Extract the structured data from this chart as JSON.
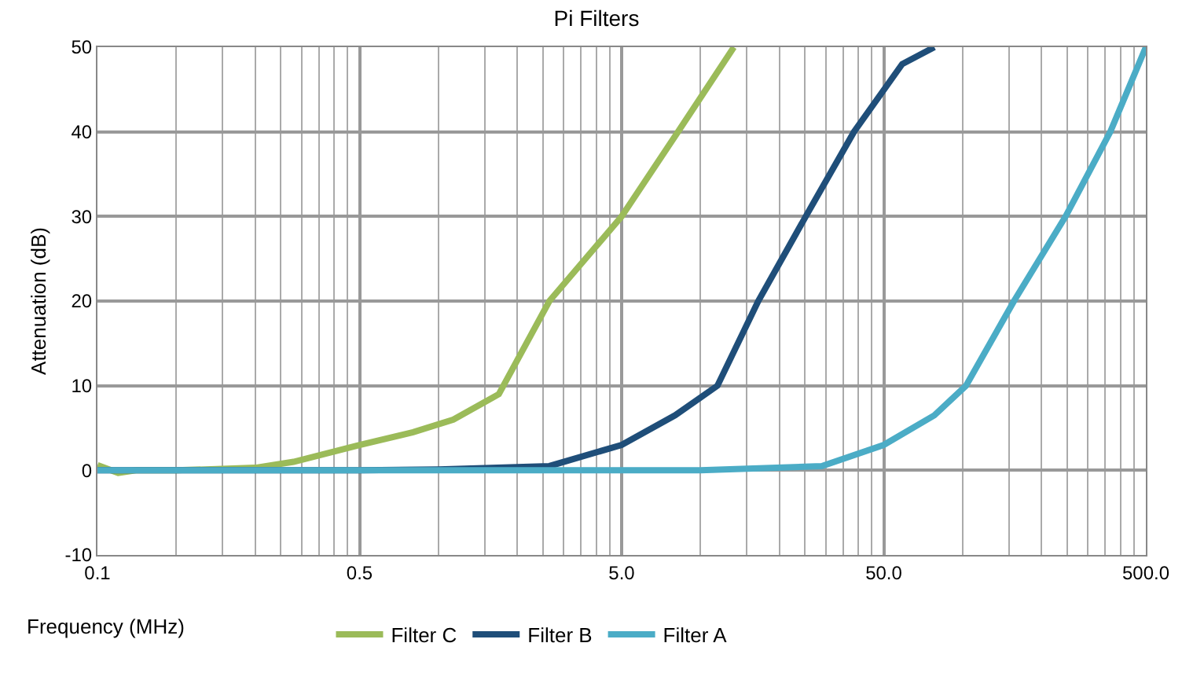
{
  "chart_data": {
    "type": "line",
    "title": "Pi Filters",
    "xlabel": "Frequency (MHz)",
    "ylabel": "Attenuation (dB)",
    "log": "x",
    "xlim": [
      0.05,
      500
    ],
    "xticks": [
      {
        "value": 0.05,
        "label": "0.1"
      },
      {
        "value": 0.5,
        "label": "0.5"
      },
      {
        "value": 5,
        "label": "5.0"
      },
      {
        "value": 50,
        "label": "50.0"
      },
      {
        "value": 500,
        "label": "500.0"
      }
    ],
    "ylim": [
      -10,
      50
    ],
    "yticks": [
      -10,
      0,
      10,
      20,
      30,
      40,
      50
    ],
    "grid": true,
    "legend": "bottom",
    "marker": "none",
    "line_style": "solid",
    "series": [
      {
        "name": "Filter C",
        "color": "#9bbb59",
        "x": [
          0.05,
          0.06,
          0.07,
          0.1,
          0.2,
          0.28,
          0.5,
          0.8,
          1.14,
          1.7,
          2.65,
          5,
          8.2,
          13.4
        ],
        "values": [
          0.6,
          -0.3,
          0,
          0,
          0.3,
          1,
          3,
          4.5,
          6,
          9,
          20,
          30,
          40,
          50
        ]
      },
      {
        "name": "Filter B",
        "color": "#1f4e79",
        "x": [
          0.05,
          0.5,
          1,
          2.65,
          5,
          8,
          11.6,
          16.6,
          25.2,
          38.5,
          58.8,
          78
        ],
        "values": [
          0,
          0,
          0.1,
          0.5,
          3,
          6.5,
          10,
          20,
          30,
          40,
          48,
          50
        ]
      },
      {
        "name": "Filter A",
        "color": "#4bacc6",
        "x": [
          0.05,
          1,
          10,
          29,
          50,
          78,
          103,
          157,
          247,
          366,
          500
        ],
        "values": [
          0,
          0,
          0,
          0.5,
          3,
          6.5,
          10,
          20,
          30,
          40,
          50
        ]
      }
    ]
  }
}
